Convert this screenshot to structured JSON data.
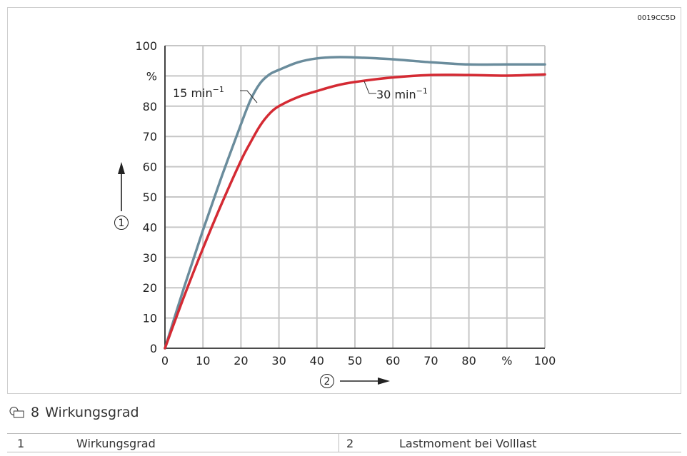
{
  "document_id": "0019CC5D",
  "figure": {
    "number": "8",
    "title": "Wirkungsgrad"
  },
  "legend_table": [
    {
      "number": "1",
      "label": "Wirkungsgrad"
    },
    {
      "number": "2",
      "label": "Lastmoment bei Volllast"
    }
  ],
  "chart_data": {
    "type": "line",
    "x_ticks": [
      "0",
      "10",
      "20",
      "30",
      "40",
      "50",
      "60",
      "70",
      "80",
      "%",
      "100"
    ],
    "y_ticks": [
      "0",
      "10",
      "20",
      "30",
      "40",
      "50",
      "60",
      "70",
      "80",
      "%",
      "100"
    ],
    "xlim": [
      0,
      100
    ],
    "ylim": [
      0,
      100
    ],
    "grid": true,
    "x_axis_marker": "2",
    "y_axis_marker": "1",
    "series": [
      {
        "name": "15 min",
        "name_exponent": "−1",
        "color": "#6a8c9c",
        "x": [
          0,
          5,
          10,
          15,
          20,
          22.5,
          25,
          27.5,
          30,
          35,
          40,
          45,
          50,
          60,
          70,
          80,
          90,
          100
        ],
        "y": [
          0,
          20,
          39,
          57,
          74,
          82,
          87.5,
          90.5,
          92,
          94.5,
          95.8,
          96.2,
          96.1,
          95.5,
          94.5,
          93.8,
          93.8,
          93.8
        ]
      },
      {
        "name": "30 min",
        "name_exponent": "−1",
        "color": "#d42a33",
        "x": [
          0,
          5,
          10,
          15,
          20,
          22.5,
          25,
          27.5,
          30,
          35,
          40,
          45,
          50,
          60,
          70,
          80,
          90,
          100
        ],
        "y": [
          0,
          17,
          33,
          48,
          62,
          68,
          73.5,
          77.5,
          80,
          83,
          85,
          86.8,
          88,
          89.5,
          90.3,
          90.3,
          90.1,
          90.5
        ]
      }
    ]
  }
}
